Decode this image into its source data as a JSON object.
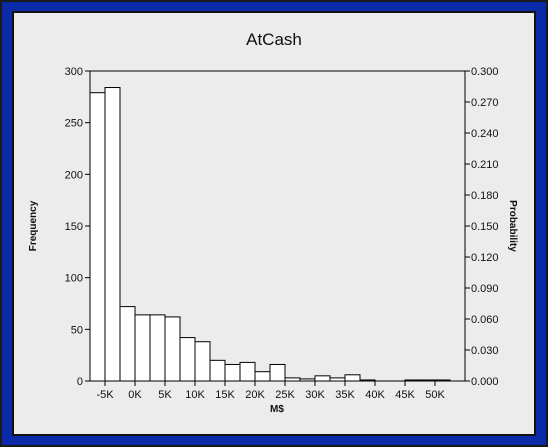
{
  "chart_data": {
    "type": "bar",
    "title": "AtCash",
    "xlabel": "M$",
    "ylabel": "Frequency",
    "y2label": "Probability",
    "bin_start": -7500,
    "bin_width": 2500,
    "values": [
      279,
      284,
      72,
      64,
      64,
      62,
      42,
      38,
      20,
      16,
      18,
      9,
      16,
      3,
      2,
      5,
      3,
      6,
      1,
      0,
      0,
      1,
      1,
      1,
      0
    ],
    "xlim": [
      -7500,
      55000
    ],
    "ylim": [
      0,
      300
    ],
    "y2lim": [
      0,
      0.3
    ],
    "xticks": [
      -5000,
      0,
      5000,
      10000,
      15000,
      20000,
      25000,
      30000,
      35000,
      40000,
      45000,
      50000
    ],
    "xtick_labels": [
      "-5K",
      "0K",
      "5K",
      "10K",
      "15K",
      "20K",
      "25K",
      "30K",
      "35K",
      "40K",
      "45K",
      "50K"
    ],
    "yticks": [
      0,
      50,
      100,
      150,
      200,
      250,
      300
    ],
    "ytick_labels": [
      "0",
      "50",
      "100",
      "150",
      "200",
      "250",
      "300"
    ],
    "y2ticks": [
      0,
      0.03,
      0.06,
      0.09,
      0.12,
      0.15,
      0.18,
      0.21,
      0.24,
      0.27,
      0.3
    ],
    "y2tick_labels": [
      "0.000",
      "0.030",
      "0.060",
      "0.090",
      "0.120",
      "0.150",
      "0.180",
      "0.210",
      "0.240",
      "0.270",
      "0.300"
    ],
    "grid": false,
    "legend": "none",
    "colors": {
      "frame": "#0a2aa8",
      "panel": "#ececec",
      "bar_fill": "#ffffff",
      "bar_stroke": "#000000"
    }
  }
}
